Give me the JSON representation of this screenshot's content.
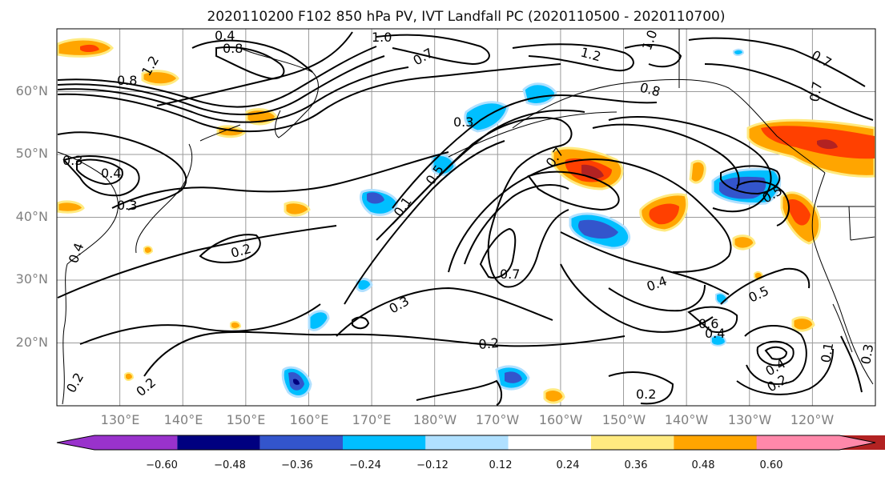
{
  "title": "2020110200 F102 850 hPa PV, IVT Landfall PC (2020110500 - 2020110700)",
  "map": {
    "lat_labels": [
      "60°N",
      "50°N",
      "40°N",
      "30°N",
      "20°N"
    ],
    "lon_labels": [
      "130°E",
      "140°E",
      "150°E",
      "160°E",
      "170°E",
      "180°W",
      "170°W",
      "160°W",
      "150°W",
      "140°W",
      "130°W",
      "120°W"
    ],
    "lat_range": [
      10,
      70
    ],
    "lon_range": [
      120,
      250
    ],
    "gridlines": true
  },
  "colorbar": {
    "ticks": [
      "−0.60",
      "−0.48",
      "−0.36",
      "−0.24",
      "−0.12",
      "0.12",
      "0.24",
      "0.36",
      "0.48",
      "0.60"
    ],
    "colors": [
      "#9932cc",
      "#000080",
      "#3355cc",
      "#00bfff",
      "#b0e0ff",
      "#ffffff",
      "#ffea80",
      "#ffa500",
      "#ff4000",
      "#b22222",
      "#ff88aa"
    ],
    "extend": "both"
  },
  "contour_labels": [
    "1.0",
    "0.4",
    "0.8",
    "1.2",
    "0.8",
    "0.7",
    "1.2",
    "1.0",
    "0.7",
    "0.3",
    "0.4",
    "0.3",
    "0.5",
    "0.7",
    "0.3",
    "0.2",
    "0.2",
    "0.3",
    "0.2",
    "0.7",
    "0.4",
    "0.5",
    "0.6",
    "0.4",
    "0.5",
    "0.4",
    "0.2",
    "0.2",
    "0.3",
    "0.7",
    "0.8",
    "0.1",
    "0.1",
    "0.4",
    "0.2"
  ]
}
